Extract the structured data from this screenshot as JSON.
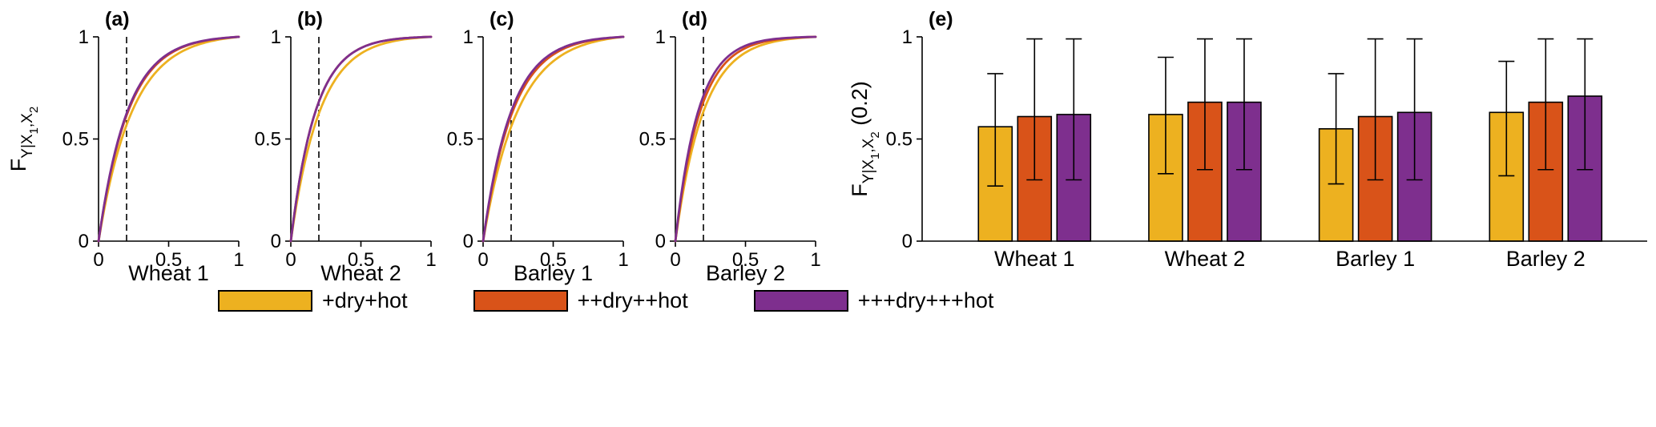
{
  "colors": {
    "yellow": "#EDB120",
    "orange": "#D95319",
    "purple": "#7E2F8E",
    "axis": "#000000",
    "background": "#ffffff"
  },
  "legend": [
    {
      "label": "+dry+hot",
      "color": "yellow"
    },
    {
      "label": "++dry++hot",
      "color": "orange"
    },
    {
      "label": "+++dry+++hot",
      "color": "purple"
    }
  ],
  "legend_position": "bottom",
  "ylabel_parts_cdf": [
    {
      "text": "F",
      "style": "main"
    },
    {
      "text": "Y|X",
      "style": "sub"
    },
    {
      "text": "1",
      "style": "subsub"
    },
    {
      "text": ",X",
      "style": "sub"
    },
    {
      "text": "2",
      "style": "subsub"
    }
  ],
  "ylabel_parts_bar": [
    {
      "text": "F",
      "style": "main"
    },
    {
      "text": "Y|X",
      "style": "sub"
    },
    {
      "text": "1",
      "style": "subsub"
    },
    {
      "text": ",X",
      "style": "sub"
    },
    {
      "text": "2",
      "style": "subsub"
    },
    {
      "text": " (0.2)",
      "style": "main"
    }
  ],
  "chart_data": [
    {
      "type": "line",
      "subtype": "empirical-cdf",
      "panel_letter": "(a)",
      "xlabel": "Wheat 1",
      "ylabel": "F_{Y|X1,X2}",
      "xlim": [
        0,
        1
      ],
      "ylim": [
        0,
        1
      ],
      "x_ticks": [
        0,
        0.5,
        1
      ],
      "y_ticks": [
        0,
        0.5,
        1
      ],
      "x_tick_labels": [
        "0",
        "0.5",
        "1"
      ],
      "y_tick_labels": [
        "0",
        "0.5",
        "1"
      ],
      "dashed_vline_x": 0.2,
      "grid": false,
      "series": [
        {
          "name": "+dry+hot",
          "color": "yellow",
          "F_at_0.2": 0.56
        },
        {
          "name": "++dry++hot",
          "color": "orange",
          "F_at_0.2": 0.61
        },
        {
          "name": "+++dry+++hot",
          "color": "purple",
          "F_at_0.2": 0.62
        }
      ]
    },
    {
      "type": "line",
      "subtype": "empirical-cdf",
      "panel_letter": "(b)",
      "xlabel": "Wheat 2",
      "ylabel": "F_{Y|X1,X2}",
      "xlim": [
        0,
        1
      ],
      "ylim": [
        0,
        1
      ],
      "x_ticks": [
        0,
        0.5,
        1
      ],
      "y_ticks": [
        0,
        0.5,
        1
      ],
      "x_tick_labels": [
        "0",
        "0.5",
        "1"
      ],
      "y_tick_labels": [
        "0",
        "0.5",
        "1"
      ],
      "dashed_vline_x": 0.2,
      "grid": false,
      "series": [
        {
          "name": "+dry+hot",
          "color": "yellow",
          "F_at_0.2": 0.62
        },
        {
          "name": "++dry++hot",
          "color": "orange",
          "F_at_0.2": 0.68
        },
        {
          "name": "+++dry+++hot",
          "color": "purple",
          "F_at_0.2": 0.68
        }
      ]
    },
    {
      "type": "line",
      "subtype": "empirical-cdf",
      "panel_letter": "(c)",
      "xlabel": "Barley 1",
      "ylabel": "F_{Y|X1,X2}",
      "xlim": [
        0,
        1
      ],
      "ylim": [
        0,
        1
      ],
      "x_ticks": [
        0,
        0.5,
        1
      ],
      "y_ticks": [
        0,
        0.5,
        1
      ],
      "x_tick_labels": [
        "0",
        "0.5",
        "1"
      ],
      "y_tick_labels": [
        "0",
        "0.5",
        "1"
      ],
      "dashed_vline_x": 0.2,
      "grid": false,
      "series": [
        {
          "name": "+dry+hot",
          "color": "yellow",
          "F_at_0.2": 0.55
        },
        {
          "name": "++dry++hot",
          "color": "orange",
          "F_at_0.2": 0.61
        },
        {
          "name": "+++dry+++hot",
          "color": "purple",
          "F_at_0.2": 0.63
        }
      ]
    },
    {
      "type": "line",
      "subtype": "empirical-cdf",
      "panel_letter": "(d)",
      "xlabel": "Barley 2",
      "ylabel": "F_{Y|X1,X2}",
      "xlim": [
        0,
        1
      ],
      "ylim": [
        0,
        1
      ],
      "x_ticks": [
        0,
        0.5,
        1
      ],
      "y_ticks": [
        0,
        0.5,
        1
      ],
      "x_tick_labels": [
        "0",
        "0.5",
        "1"
      ],
      "y_tick_labels": [
        "0",
        "0.5",
        "1"
      ],
      "dashed_vline_x": 0.2,
      "grid": false,
      "series": [
        {
          "name": "+dry+hot",
          "color": "yellow",
          "F_at_0.2": 0.63
        },
        {
          "name": "++dry++hot",
          "color": "orange",
          "F_at_0.2": 0.68
        },
        {
          "name": "+++dry+++hot",
          "color": "purple",
          "F_at_0.2": 0.71
        }
      ]
    },
    {
      "type": "bar",
      "panel_letter": "(e)",
      "ylabel": "F_{Y|X1,X2}(0.2)",
      "categories": [
        "Wheat 1",
        "Wheat 2",
        "Barley 1",
        "Barley 2"
      ],
      "ylim": [
        0,
        1
      ],
      "y_ticks": [
        0,
        0.5,
        1
      ],
      "y_tick_labels": [
        "0",
        "0.5",
        "1"
      ],
      "grid": false,
      "series": [
        {
          "name": "+dry+hot",
          "color": "yellow",
          "values": [
            0.56,
            0.62,
            0.55,
            0.63
          ],
          "err_low": [
            0.27,
            0.33,
            0.28,
            0.32
          ],
          "err_high": [
            0.82,
            0.9,
            0.82,
            0.88
          ]
        },
        {
          "name": "++dry++hot",
          "color": "orange",
          "values": [
            0.61,
            0.68,
            0.61,
            0.68
          ],
          "err_low": [
            0.3,
            0.35,
            0.3,
            0.35
          ],
          "err_high": [
            0.99,
            0.99,
            0.99,
            0.99
          ]
        },
        {
          "name": "+++dry+++hot",
          "color": "purple",
          "values": [
            0.62,
            0.68,
            0.63,
            0.71
          ],
          "err_low": [
            0.3,
            0.35,
            0.3,
            0.35
          ],
          "err_high": [
            0.99,
            0.99,
            0.99,
            0.99
          ]
        }
      ]
    }
  ]
}
